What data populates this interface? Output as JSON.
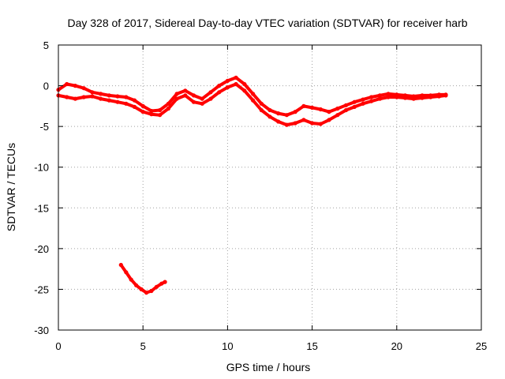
{
  "chart_data": {
    "type": "scatter",
    "title": "Day 328 of 2017, Sidereal Day-to-day VTEC variation (SDTVAR) for receiver harb",
    "xlabel": "GPS time / hours",
    "ylabel": "SDTVAR / TECUs",
    "xlim": [
      0,
      25
    ],
    "ylim": [
      -30,
      5
    ],
    "xticks": [
      0,
      5,
      10,
      15,
      20,
      25
    ],
    "yticks": [
      5,
      0,
      -5,
      -10,
      -15,
      -20,
      -25,
      -30
    ],
    "grid": true,
    "legend": "none",
    "series_color": "#ff0000",
    "series": [
      {
        "name": "main-trace-upper",
        "x": [
          0.0,
          0.5,
          1.0,
          1.5,
          2.0,
          2.5,
          3.0,
          3.5,
          4.0,
          4.5,
          5.0,
          5.5,
          6.0,
          6.5,
          7.0,
          7.5,
          8.0,
          8.5,
          9.0,
          9.5,
          10.0,
          10.5,
          11.0,
          11.5,
          12.0,
          12.5,
          13.0,
          13.5,
          14.0,
          14.5,
          15.0,
          15.5,
          16.0,
          16.5,
          17.0,
          17.5,
          18.0,
          18.5,
          19.0,
          19.5,
          20.0,
          20.5,
          21.0,
          21.5,
          22.0,
          22.5,
          22.9
        ],
        "y": [
          -0.5,
          0.2,
          0.0,
          -0.3,
          -0.8,
          -1.0,
          -1.2,
          -1.3,
          -1.4,
          -1.8,
          -2.5,
          -3.1,
          -3.0,
          -2.2,
          -1.0,
          -0.6,
          -1.2,
          -1.6,
          -0.8,
          0.0,
          0.6,
          1.0,
          0.2,
          -1.0,
          -2.2,
          -3.0,
          -3.4,
          -3.6,
          -3.2,
          -2.5,
          -2.7,
          -2.9,
          -3.2,
          -2.8,
          -2.4,
          -2.0,
          -1.7,
          -1.4,
          -1.2,
          -1.0,
          -1.1,
          -1.2,
          -1.3,
          -1.2,
          -1.2,
          -1.1,
          -1.1
        ]
      },
      {
        "name": "main-trace-lower",
        "x": [
          0.0,
          0.5,
          1.0,
          1.5,
          2.0,
          2.5,
          3.0,
          3.5,
          4.0,
          4.5,
          5.0,
          5.5,
          6.0,
          6.5,
          7.0,
          7.5,
          8.0,
          8.5,
          9.0,
          9.5,
          10.0,
          10.5,
          11.0,
          11.5,
          12.0,
          12.5,
          13.0,
          13.5,
          14.0,
          14.5,
          15.0,
          15.5,
          16.0,
          16.5,
          17.0,
          17.5,
          18.0,
          18.5,
          19.0,
          19.5,
          20.0,
          20.5,
          21.0,
          21.5,
          22.0,
          22.5,
          22.9
        ],
        "y": [
          -1.2,
          -1.4,
          -1.6,
          -1.4,
          -1.3,
          -1.6,
          -1.8,
          -2.0,
          -2.2,
          -2.6,
          -3.2,
          -3.5,
          -3.6,
          -2.8,
          -1.6,
          -1.2,
          -2.0,
          -2.2,
          -1.6,
          -0.8,
          -0.2,
          0.2,
          -0.6,
          -1.8,
          -3.0,
          -3.8,
          -4.4,
          -4.8,
          -4.6,
          -4.2,
          -4.6,
          -4.7,
          -4.2,
          -3.6,
          -3.0,
          -2.6,
          -2.2,
          -1.9,
          -1.6,
          -1.4,
          -1.4,
          -1.5,
          -1.6,
          -1.5,
          -1.4,
          -1.3,
          -1.2
        ]
      },
      {
        "name": "isolated-arc",
        "x": [
          3.7,
          4.0,
          4.3,
          4.6,
          4.9,
          5.2,
          5.5,
          5.8,
          6.1,
          6.3
        ],
        "y": [
          -22.0,
          -22.9,
          -23.8,
          -24.5,
          -25.0,
          -25.4,
          -25.2,
          -24.7,
          -24.3,
          -24.1
        ]
      }
    ]
  }
}
